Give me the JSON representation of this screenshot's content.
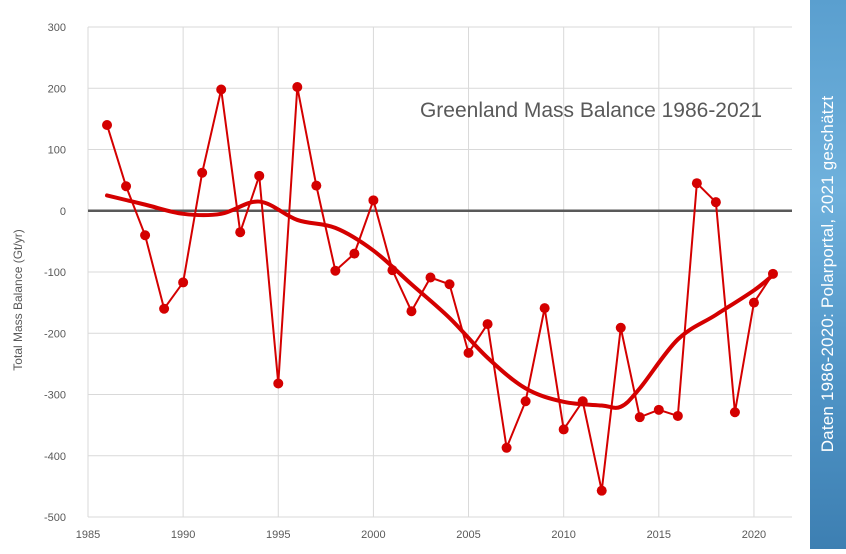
{
  "chart_data": {
    "type": "line",
    "title": "Greenland Mass Balance 1986-2021",
    "ylabel": "Total Mass Balance (Gt/yr)",
    "xlabel": "",
    "xlim": [
      1985,
      2022
    ],
    "ylim": [
      -500,
      300
    ],
    "x_ticks": [
      1985,
      1990,
      1995,
      2000,
      2005,
      2010,
      2015,
      2020
    ],
    "y_ticks": [
      300,
      200,
      100,
      0,
      -100,
      -200,
      -300,
      -400,
      -500
    ],
    "grid": true,
    "series": [
      {
        "x": [
          1986,
          1987,
          1988,
          1989,
          1990,
          1991,
          1992,
          1993,
          1994,
          1995,
          1996,
          1997,
          1998,
          1999,
          2000,
          2001,
          2002,
          2003,
          2004,
          2005,
          2006,
          2007,
          2008,
          2009,
          2010,
          2011,
          2012,
          2013,
          2014,
          2015,
          2016,
          2017,
          2018,
          2019,
          2020,
          2021
        ],
        "values": [
          140,
          40,
          -40,
          -160,
          -117,
          62,
          198,
          -35,
          57,
          -282,
          202,
          41,
          -98,
          -70,
          17,
          -97,
          -164,
          -109,
          -120,
          -232,
          -185,
          -387,
          -311,
          -159,
          -357,
          -311,
          -457,
          -191,
          -337,
          -325,
          -335,
          45,
          14,
          -329,
          -150,
          -103
        ],
        "color": "#d40000",
        "markers": true
      },
      {
        "x": [
          1986,
          1988,
          1990,
          1992,
          1994,
          1996,
          1998,
          2000,
          2002,
          2004,
          2006,
          2008,
          2010,
          2012,
          2013,
          2014,
          2016,
          2018,
          2020,
          2021
        ],
        "values": [
          25,
          10,
          -5,
          -5,
          15,
          -15,
          -28,
          -65,
          -120,
          -175,
          -240,
          -290,
          -312,
          -318,
          -320,
          -290,
          -210,
          -170,
          -130,
          -105
        ],
        "color": "#d40000",
        "markers": false,
        "smoothed": true
      }
    ],
    "colors": {
      "series": "#d40000",
      "grid": "#d9d9d9",
      "zero_line": "#595959",
      "text": "#595959"
    }
  },
  "side_note": "Daten 1986-2020: Polarportal, 2021 geschätzt"
}
